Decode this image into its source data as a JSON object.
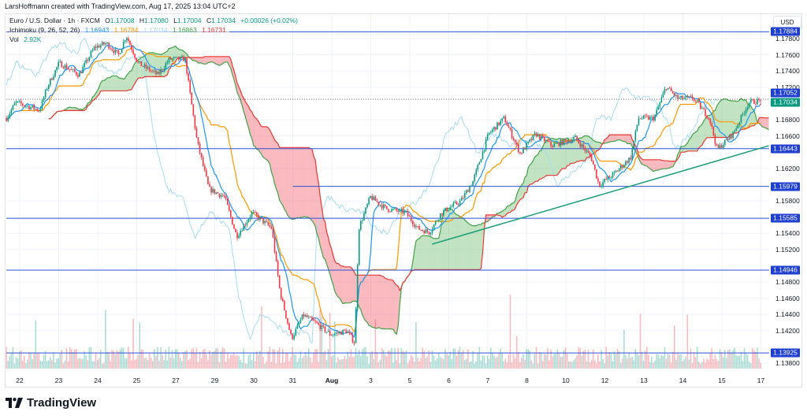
{
  "credit": "LarsHoffmann created with TradingView.com, Aug 17, 2025 13:04 UTC+2",
  "legend": {
    "symbol": "Euro / U.S. Dollar · 1h · FXCM",
    "o_label": "O",
    "o": "1.17008",
    "h_label": "H",
    "h": "1.17080",
    "l_label": "L",
    "l": "1.17004",
    "c_label": "C",
    "c": "1.17034",
    "change": "+0.00026 (+0.02%)",
    "ichimoku_label": "Ichimoku (9, 26, 52, 26)",
    "ichimoku_values": [
      "1.16943",
      "1.16784",
      "1.17034",
      "1.16863",
      "1.16731"
    ],
    "vol_label": "Vol",
    "vol": "2.92K"
  },
  "currency": "USD",
  "brand": "TradingView",
  "colors": {
    "up": "#089981",
    "down": "#f23645",
    "tenkan": "#2196f3",
    "kijun": "#ff9800",
    "chikou": "#a9dcef",
    "span_a": "#43a047",
    "span_b": "#e53935",
    "hline": "#2f52d6",
    "badge": "#1e3fcf",
    "trend": "#1b9e77"
  },
  "chart_data": {
    "type": "candlestick",
    "title": "Euro / U.S. Dollar · 1h · FXCM",
    "ylabel": "USD",
    "ylim": [
      1.1372,
      1.182
    ],
    "grid": true,
    "price_ticks": [
      "1.17800",
      "1.17600",
      "1.17400",
      "1.17200",
      "1.16800",
      "1.16600",
      "1.16200",
      "1.15800",
      "1.15400",
      "1.15200",
      "1.14800",
      "1.14600",
      "1.14400",
      "1.14200",
      "1.13800"
    ],
    "x_ticks": [
      {
        "label": "22",
        "t": 0
      },
      {
        "label": "23",
        "t": 1
      },
      {
        "label": "24",
        "t": 2
      },
      {
        "label": "25",
        "t": 3
      },
      {
        "label": "27",
        "t": 4
      },
      {
        "label": "29",
        "t": 5
      },
      {
        "label": "30",
        "t": 6
      },
      {
        "label": "31",
        "t": 7
      },
      {
        "label": "Aug",
        "t": 8
      },
      {
        "label": "3",
        "t": 9
      },
      {
        "label": "5",
        "t": 10
      },
      {
        "label": "6",
        "t": 11
      },
      {
        "label": "7",
        "t": 12
      },
      {
        "label": "8",
        "t": 13
      },
      {
        "label": "10",
        "t": 14
      },
      {
        "label": "12",
        "t": 15
      },
      {
        "label": "13",
        "t": 16
      },
      {
        "label": "14",
        "t": 17
      },
      {
        "label": "15",
        "t": 18
      },
      {
        "label": "17",
        "t": 19
      }
    ],
    "close_path": [
      [
        -0.34,
        1.16819
      ],
      [
        -0.1,
        1.17014
      ],
      [
        0.51,
        1.16917
      ],
      [
        0.71,
        1.17208
      ],
      [
        1.01,
        1.17499
      ],
      [
        1.52,
        1.17353
      ],
      [
        1.92,
        1.17693
      ],
      [
        2.22,
        1.17742
      ],
      [
        2.53,
        1.17596
      ],
      [
        2.73,
        1.17839
      ],
      [
        3.03,
        1.17499
      ],
      [
        3.54,
        1.17353
      ],
      [
        3.84,
        1.17548
      ],
      [
        4.24,
        1.17548
      ],
      [
        4.34,
        1.17208
      ],
      [
        4.55,
        1.16528
      ],
      [
        4.85,
        1.15946
      ],
      [
        5.25,
        1.15849
      ],
      [
        5.56,
        1.15363
      ],
      [
        5.96,
        1.15654
      ],
      [
        6.46,
        1.1546
      ],
      [
        6.67,
        1.14683
      ],
      [
        6.97,
        1.14101
      ],
      [
        7.27,
        1.14392
      ],
      [
        7.58,
        1.14295
      ],
      [
        7.98,
        1.1415
      ],
      [
        8.38,
        1.14198
      ],
      [
        8.59,
        1.14052
      ],
      [
        8.69,
        1.1546
      ],
      [
        8.99,
        1.15849
      ],
      [
        9.39,
        1.15703
      ],
      [
        9.9,
        1.15654
      ],
      [
        10.2,
        1.1546
      ],
      [
        10.5,
        1.15412
      ],
      [
        10.81,
        1.15654
      ],
      [
        11.31,
        1.158
      ],
      [
        11.62,
        1.16043
      ],
      [
        12.02,
        1.16625
      ],
      [
        12.42,
        1.16819
      ],
      [
        12.83,
        1.16383
      ],
      [
        13.23,
        1.16625
      ],
      [
        13.64,
        1.1648
      ],
      [
        14.24,
        1.16577
      ],
      [
        14.65,
        1.16334
      ],
      [
        14.85,
        1.15994
      ],
      [
        15.25,
        1.1614
      ],
      [
        15.66,
        1.16334
      ],
      [
        15.86,
        1.16819
      ],
      [
        16.26,
        1.16819
      ],
      [
        16.57,
        1.17208
      ],
      [
        16.87,
        1.17062
      ],
      [
        17.27,
        1.17062
      ],
      [
        17.68,
        1.16819
      ],
      [
        17.88,
        1.16431
      ],
      [
        18.28,
        1.16625
      ],
      [
        18.69,
        1.17014
      ],
      [
        18.99,
        1.17034
      ]
    ],
    "indicators": {
      "ichimoku": {
        "tenkan": 9,
        "kijun": 26,
        "span_b": 52,
        "displacement": 26
      }
    },
    "horizontal_levels": [
      {
        "price": 1.17884,
        "label": "1.17884"
      },
      {
        "price": 1.16443,
        "label": "1.16443"
      },
      {
        "price": 1.15979,
        "label": "1.15979"
      },
      {
        "price": 1.15585,
        "label": "1.15585"
      },
      {
        "price": 1.14946,
        "label": "1.14946"
      },
      {
        "price": 1.13925,
        "label": "1.13925"
      }
    ],
    "partial_level": {
      "price": 1.15979,
      "t_start": 7.0
    },
    "trendline": {
      "from": [
        10.57,
        1.15266
      ],
      "to": [
        19.2,
        1.16479
      ]
    },
    "last_price": {
      "price": 1.17034,
      "label": "1.17034"
    },
    "dotted_level": {
      "price": 1.17052,
      "label": "1.17052"
    }
  }
}
